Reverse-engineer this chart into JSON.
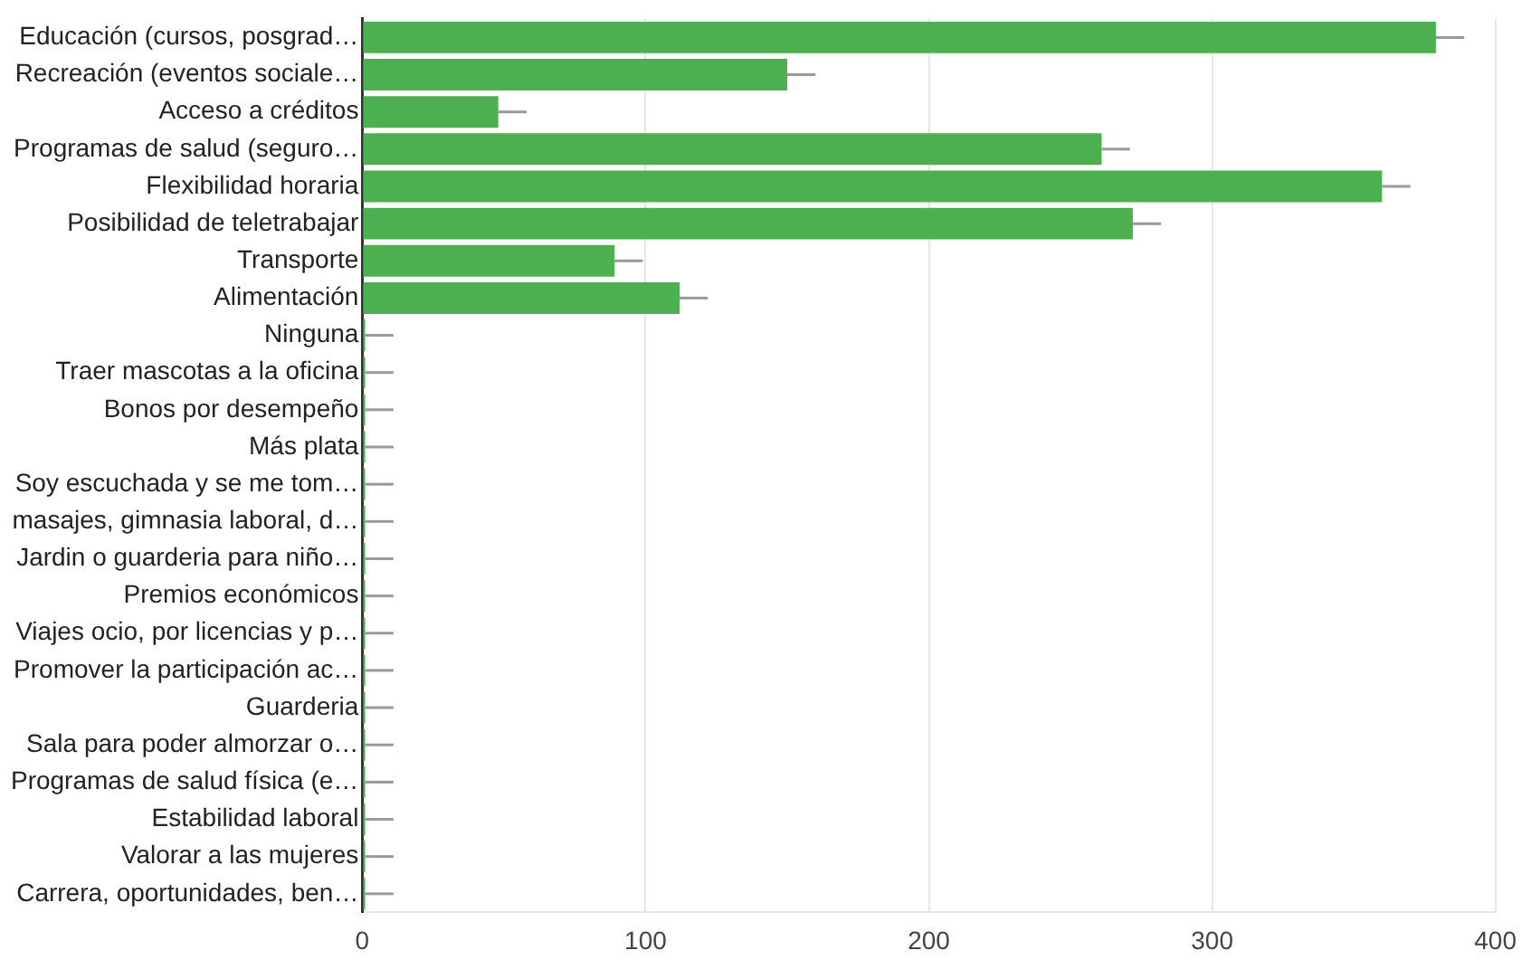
{
  "chart_data": {
    "type": "bar",
    "orientation": "horizontal",
    "categories": [
      "Educación (cursos, posgrad…",
      "Recreación (eventos sociale…",
      "Acceso a créditos",
      "Programas de salud (seguro…",
      "Flexibilidad horaria",
      "Posibilidad de teletrabajar",
      "Transporte",
      "Alimentación",
      "Ninguna",
      "Traer mascotas a la oficina",
      "Bonos por desempeño",
      "Más plata",
      "Soy escuchada y se me tom…",
      "masajes, gimnasia laboral, d…",
      "Jardin o guarderia para niño…",
      "Premios económicos",
      "Viajes ocio, por licencias y p…",
      "Promover la participación ac…",
      "Guarderia",
      "Sala para poder almorzar o…",
      "Programas de salud física (e…",
      "Estabilidad laboral",
      "Valorar a las mujeres",
      "Carrera, oportunidades, ben…"
    ],
    "values": [
      379,
      150,
      48,
      261,
      360,
      272,
      89,
      112,
      1,
      1,
      1,
      1,
      1,
      1,
      1,
      1,
      1,
      1,
      1,
      1,
      1,
      1,
      1,
      1
    ],
    "errors": [
      [
        379,
        389
      ],
      [
        150,
        160
      ],
      [
        48,
        58
      ],
      [
        261,
        271
      ],
      [
        360,
        370
      ],
      [
        272,
        282
      ],
      [
        89,
        99
      ],
      [
        112,
        122
      ],
      [
        1,
        11
      ],
      [
        1,
        11
      ],
      [
        1,
        11
      ],
      [
        1,
        11
      ],
      [
        1,
        11
      ],
      [
        1,
        11
      ],
      [
        1,
        11
      ],
      [
        1,
        11
      ],
      [
        1,
        11
      ],
      [
        1,
        11
      ],
      [
        1,
        11
      ],
      [
        1,
        11
      ],
      [
        1,
        11
      ],
      [
        1,
        11
      ],
      [
        1,
        11
      ],
      [
        1,
        11
      ]
    ],
    "color": "#4caf50",
    "xlim": [
      0,
      400
    ],
    "xticks": [
      0,
      100,
      200,
      300,
      400
    ],
    "grid": "x",
    "legend": false
  }
}
